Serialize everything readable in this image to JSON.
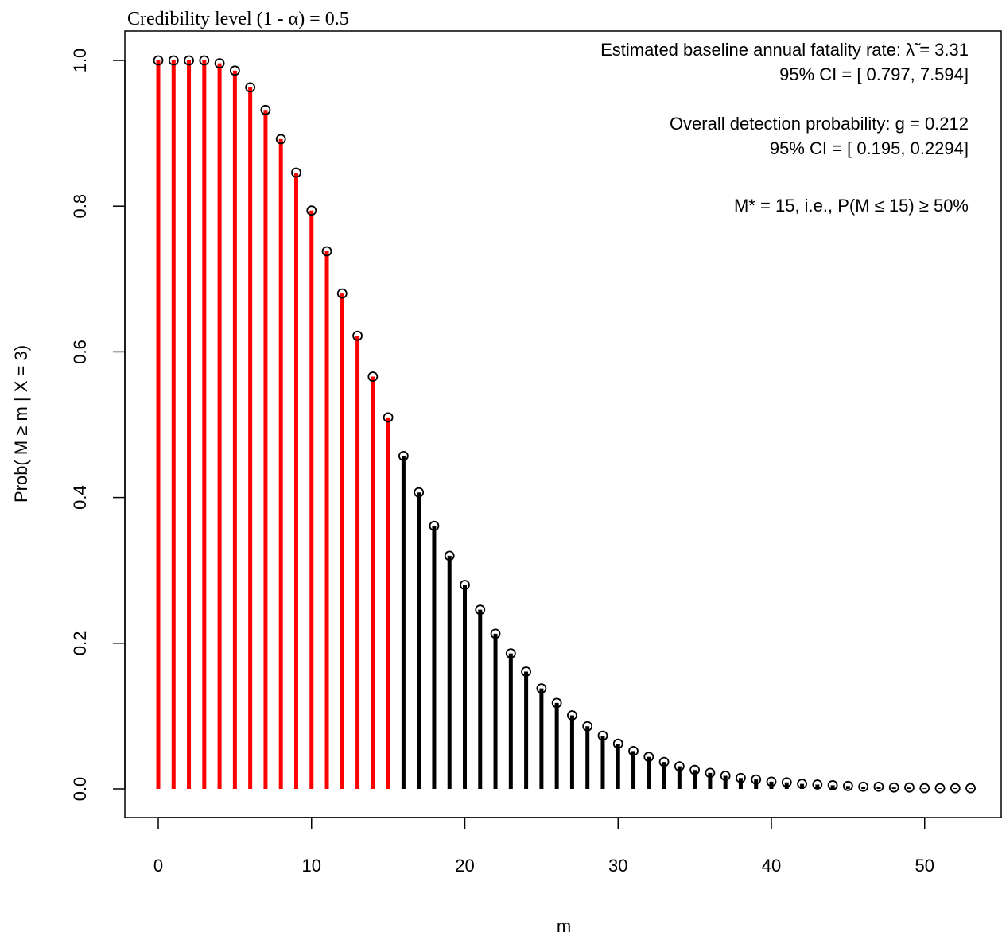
{
  "chart_data": {
    "type": "bar",
    "title": "Credibility level (1 - α) =  0.5",
    "xlabel": "m",
    "ylabel": "Prob( M ≥ m | X = 3)",
    "xlim": [
      -2.1,
      55.1
    ],
    "ylim": [
      -0.04,
      1.04
    ],
    "xticks": [
      0,
      10,
      20,
      30,
      40,
      50
    ],
    "yticks": [
      0.0,
      0.2,
      0.4,
      0.6,
      0.8,
      1.0
    ],
    "ytick_labels": [
      "0.0",
      "0.2",
      "0.4",
      "0.6",
      "0.8",
      "1.0"
    ],
    "m_star": 15,
    "colors": {
      "within_credible": "#ff0000",
      "beyond_credible": "#000000"
    },
    "annotations": [
      "Estimated baseline annual fatality rate: λ̃ = 3.31",
      "95% CI = [ 0.797, 7.594]",
      "Overall detection probability: g = 0.212",
      "95% CI = [ 0.195, 0.2294]",
      "M* = 15, i.e., P(M ≤ 15) ≥ 50%"
    ],
    "x": [
      0,
      1,
      2,
      3,
      4,
      5,
      6,
      7,
      8,
      9,
      10,
      11,
      12,
      13,
      14,
      15,
      16,
      17,
      18,
      19,
      20,
      21,
      22,
      23,
      24,
      25,
      26,
      27,
      28,
      29,
      30,
      31,
      32,
      33,
      34,
      35,
      36,
      37,
      38,
      39,
      40,
      41,
      42,
      43,
      44,
      45,
      46,
      47,
      48,
      49,
      50,
      51,
      52,
      53
    ],
    "values": [
      1.0,
      1.0,
      1.0,
      1.0,
      0.996,
      0.986,
      0.963,
      0.932,
      0.892,
      0.846,
      0.794,
      0.738,
      0.68,
      0.622,
      0.566,
      0.51,
      0.457,
      0.407,
      0.361,
      0.32,
      0.28,
      0.246,
      0.213,
      0.186,
      0.161,
      0.138,
      0.118,
      0.101,
      0.086,
      0.073,
      0.062,
      0.052,
      0.044,
      0.037,
      0.031,
      0.026,
      0.022,
      0.018,
      0.015,
      0.013,
      0.01,
      0.009,
      0.007,
      0.006,
      0.005,
      0.004,
      0.003,
      0.003,
      0.002,
      0.002,
      0.001,
      0.001,
      0.001,
      0.001
    ]
  }
}
